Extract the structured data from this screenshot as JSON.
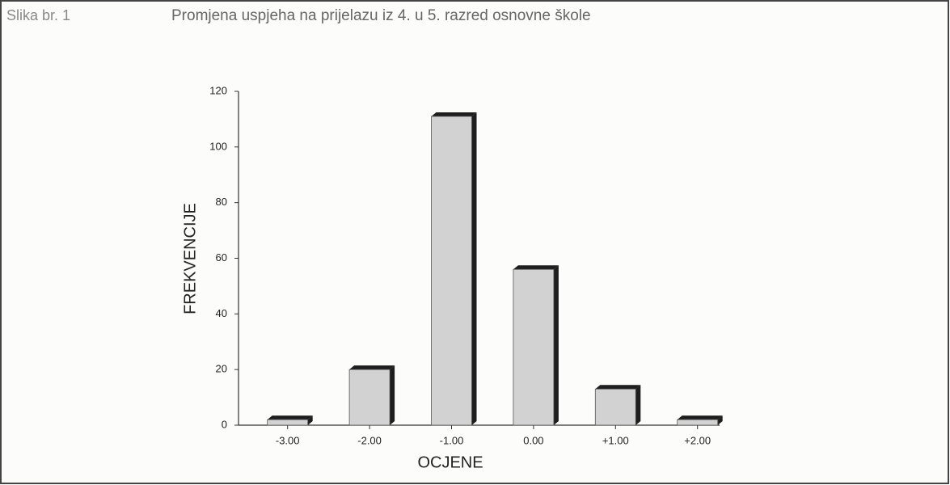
{
  "chart_data": {
    "type": "bar3d",
    "figure_label": "Slika br. 1",
    "title": "Promjena uspjeha na prijelazu iz 4. u 5. razred osnovne škole",
    "x_label": "OCJENE",
    "y_label": "FREKVENCIJE",
    "categories": [
      "-3.00",
      "-2.00",
      "-1.00",
      "0.00",
      "+1.00",
      "+2.00"
    ],
    "values": [
      2,
      20,
      111,
      56,
      13,
      2
    ],
    "color": "#d2d2d2",
    "side_color": "#1e1e1e",
    "ylim": [
      0,
      120
    ],
    "yticks": [
      0,
      20,
      40,
      60,
      80,
      100,
      120
    ],
    "grid": false
  }
}
